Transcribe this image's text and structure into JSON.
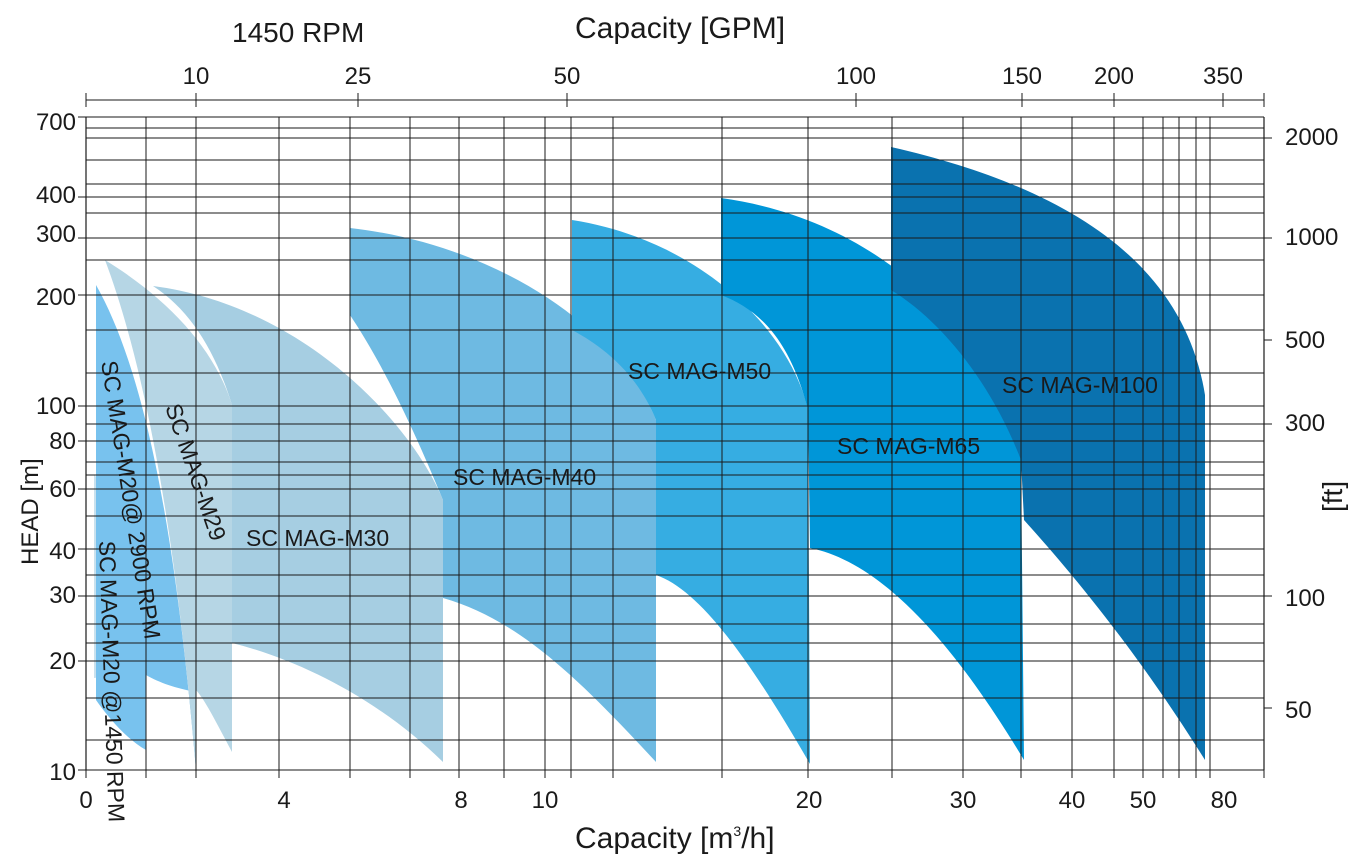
{
  "chart_data": {
    "type": "area",
    "speed_label": "1450 RPM",
    "x_top_title": "Capacity  [GPM]",
    "x_bottom_title": "Capacity  [m",
    "x_bottom_title_sup": "3",
    "x_bottom_title_end": "/h]",
    "y_left_title": "HEAD [m]",
    "y_right_title": "[ft]",
    "x_bottom_ticks": [
      "0",
      "4",
      "8",
      "10",
      "20",
      "30",
      "40",
      "50",
      "80"
    ],
    "x_top_ticks": [
      "10",
      "25",
      "50",
      "100",
      "150",
      "200",
      "350"
    ],
    "y_left_ticks": [
      "700",
      "400",
      "300",
      "200",
      "100",
      "80",
      "60",
      "40",
      "30",
      "20",
      "10"
    ],
    "y_right_ticks": [
      "2000",
      "1000",
      "500",
      "300",
      "100",
      "50"
    ],
    "series": [
      {
        "name": "SC MAG-M20 @1450 RPM",
        "color": "#c9e1ee",
        "capacity_m3h": [
          0.2,
          1.2
        ],
        "head_m": [
          18,
          65
        ]
      },
      {
        "name": "SC MAG-M20@ 2900 RPM",
        "color": "#78c2ee",
        "capacity_m3h": [
          0.3,
          2.3
        ],
        "head_m": [
          10,
          215
        ]
      },
      {
        "name": "SC MAG-M29",
        "color": "#b6d6e5",
        "capacity_m3h": [
          0.5,
          3.1
        ],
        "head_m": [
          11,
          250
        ]
      },
      {
        "name": "SC MAG-M30",
        "color": "#a6cee2",
        "capacity_m3h": [
          1.4,
          7.6
        ],
        "head_m": [
          11,
          215
        ]
      },
      {
        "name": "SC MAG-M40",
        "color": "#6ebae2",
        "capacity_m3h": [
          5.6,
          13.4
        ],
        "head_m": [
          11,
          320
        ]
      },
      {
        "name": "SC MAG-M50",
        "color": "#36ade2",
        "capacity_m3h": [
          10.7,
          20
        ],
        "head_m": [
          10,
          330
        ]
      },
      {
        "name": "SC MAG-M65",
        "color": "#0096d8",
        "capacity_m3h": [
          15.8,
          35.4
        ],
        "head_m": [
          11,
          390
        ]
      },
      {
        "name": "SC MAG-M100",
        "color": "#0a72af",
        "capacity_m3h": [
          25,
          75
        ],
        "head_m": [
          11,
          600
        ]
      }
    ]
  }
}
